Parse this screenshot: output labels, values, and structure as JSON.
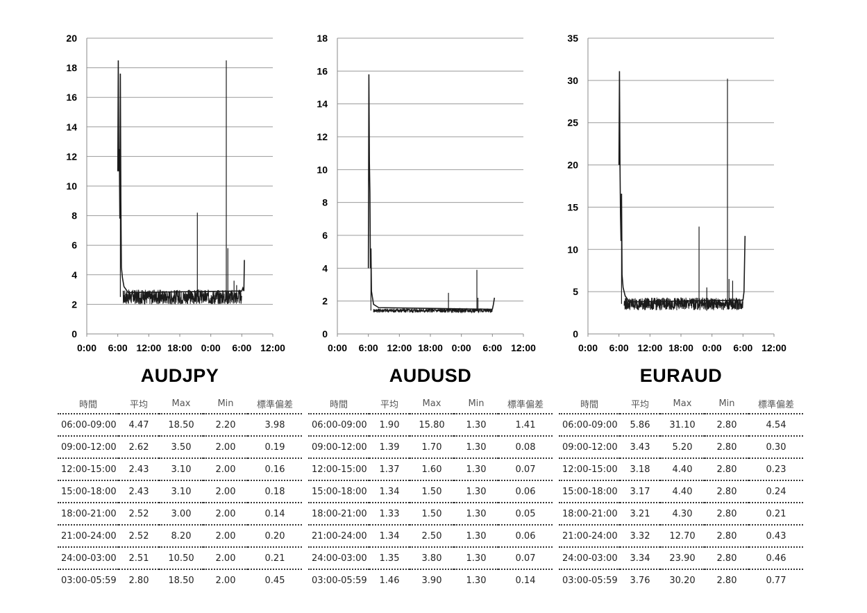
{
  "table_headers": [
    "時間",
    "平均",
    "Max",
    "Min",
    "標準偏差"
  ],
  "chart_data": [
    {
      "type": "line",
      "title": "AUDJPY",
      "ylim": [
        0,
        20
      ],
      "yticks": [
        0,
        2,
        4,
        6,
        8,
        10,
        12,
        14,
        16,
        18,
        20
      ],
      "xticks": [
        "0:00",
        "6:00",
        "12:00",
        "18:00",
        "0:00",
        "6:00",
        "12:00"
      ],
      "xlim_hours": [
        0,
        36
      ],
      "grid": true,
      "line_color": "#1a1a1a",
      "series_points": [
        [
          6.0,
          11.0
        ],
        [
          6.1,
          18.5
        ],
        [
          6.2,
          11.0
        ],
        [
          6.3,
          12.5
        ],
        [
          6.4,
          7.8
        ],
        [
          6.5,
          17.6
        ],
        [
          6.6,
          9.0
        ],
        [
          6.7,
          4.5
        ],
        [
          6.9,
          3.8
        ],
        [
          7.2,
          3.2
        ],
        [
          8,
          2.8
        ],
        [
          30,
          2.9
        ],
        [
          30.2,
          3.1
        ],
        [
          30.4,
          2.9
        ],
        [
          30.5,
          5.0
        ]
      ],
      "spikes": [
        [
          6.5,
          17.6
        ],
        [
          21.4,
          8.2
        ],
        [
          27.0,
          18.5
        ],
        [
          27.3,
          5.8
        ],
        [
          28.5,
          3.6
        ],
        [
          29.0,
          3.3
        ]
      ],
      "band": {
        "start": 7,
        "end": 30,
        "low": 2.0,
        "high": 3.0
      },
      "stats": [
        {
          "time": "06:00-09:00",
          "avg": "4.47",
          "max": "18.50",
          "min": "2.20",
          "sd": "3.98"
        },
        {
          "time": "09:00-12:00",
          "avg": "2.62",
          "max": "3.50",
          "min": "2.00",
          "sd": "0.19"
        },
        {
          "time": "12:00-15:00",
          "avg": "2.43",
          "max": "3.10",
          "min": "2.00",
          "sd": "0.16"
        },
        {
          "time": "15:00-18:00",
          "avg": "2.43",
          "max": "3.10",
          "min": "2.00",
          "sd": "0.18"
        },
        {
          "time": "18:00-21:00",
          "avg": "2.52",
          "max": "3.00",
          "min": "2.00",
          "sd": "0.14"
        },
        {
          "time": "21:00-24:00",
          "avg": "2.52",
          "max": "8.20",
          "min": "2.00",
          "sd": "0.20"
        },
        {
          "time": "24:00-03:00",
          "avg": "2.51",
          "max": "10.50",
          "min": "2.00",
          "sd": "0.21"
        },
        {
          "time": "03:00-05:59",
          "avg": "2.80",
          "max": "18.50",
          "min": "2.00",
          "sd": "0.45"
        }
      ]
    },
    {
      "type": "line",
      "title": "AUDUSD",
      "ylim": [
        0,
        18
      ],
      "yticks": [
        0,
        2,
        4,
        6,
        8,
        10,
        12,
        14,
        16,
        18
      ],
      "xticks": [
        "0:00",
        "6:00",
        "12:00",
        "18:00",
        "0:00",
        "6:00",
        "12:00"
      ],
      "xlim_hours": [
        0,
        36
      ],
      "grid": true,
      "line_color": "#1a1a1a",
      "series_points": [
        [
          6.0,
          4.0
        ],
        [
          6.1,
          15.8
        ],
        [
          6.2,
          10.5
        ],
        [
          6.3,
          8.6
        ],
        [
          6.4,
          4.0
        ],
        [
          6.5,
          5.2
        ],
        [
          6.6,
          2.6
        ],
        [
          6.8,
          2.2
        ],
        [
          7.0,
          1.8
        ],
        [
          8,
          1.6
        ],
        [
          30,
          1.5
        ],
        [
          30.2,
          1.8
        ],
        [
          30.4,
          2.2
        ]
      ],
      "spikes": [
        [
          6.5,
          5.2
        ],
        [
          21.5,
          2.5
        ],
        [
          27.0,
          3.9
        ],
        [
          27.2,
          2.2
        ]
      ],
      "band": {
        "start": 7,
        "end": 30,
        "low": 1.3,
        "high": 1.55
      },
      "stats": [
        {
          "time": "06:00-09:00",
          "avg": "1.90",
          "max": "15.80",
          "min": "1.30",
          "sd": "1.41"
        },
        {
          "time": "09:00-12:00",
          "avg": "1.39",
          "max": "1.70",
          "min": "1.30",
          "sd": "0.08"
        },
        {
          "time": "12:00-15:00",
          "avg": "1.37",
          "max": "1.60",
          "min": "1.30",
          "sd": "0.07"
        },
        {
          "time": "15:00-18:00",
          "avg": "1.34",
          "max": "1.50",
          "min": "1.30",
          "sd": "0.06"
        },
        {
          "time": "18:00-21:00",
          "avg": "1.33",
          "max": "1.50",
          "min": "1.30",
          "sd": "0.05"
        },
        {
          "time": "21:00-24:00",
          "avg": "1.34",
          "max": "2.50",
          "min": "1.30",
          "sd": "0.06"
        },
        {
          "time": "24:00-03:00",
          "avg": "1.35",
          "max": "3.80",
          "min": "1.30",
          "sd": "0.07"
        },
        {
          "time": "03:00-05:59",
          "avg": "1.46",
          "max": "3.90",
          "min": "1.30",
          "sd": "0.14"
        }
      ]
    },
    {
      "type": "line",
      "title": "EURAUD",
      "ylim": [
        0,
        35
      ],
      "yticks": [
        0,
        5,
        10,
        15,
        20,
        25,
        30,
        35
      ],
      "xticks": [
        "0:00",
        "6:00",
        "12:00",
        "18:00",
        "0:00",
        "6:00",
        "12:00"
      ],
      "xlim_hours": [
        0,
        36
      ],
      "grid": true,
      "line_color": "#1a1a1a",
      "series_points": [
        [
          6.0,
          20.0
        ],
        [
          6.1,
          31.1
        ],
        [
          6.2,
          20.0
        ],
        [
          6.3,
          14.0
        ],
        [
          6.4,
          11.0
        ],
        [
          6.5,
          16.6
        ],
        [
          6.6,
          7.0
        ],
        [
          6.8,
          5.5
        ],
        [
          7.2,
          4.5
        ],
        [
          8,
          3.8
        ],
        [
          30,
          4.0
        ],
        [
          30.2,
          5.0
        ],
        [
          30.4,
          11.6
        ]
      ],
      "spikes": [
        [
          6.5,
          16.6
        ],
        [
          21.5,
          12.7
        ],
        [
          23.0,
          5.5
        ],
        [
          27.0,
          30.2
        ],
        [
          27.3,
          6.5
        ],
        [
          28.0,
          6.3
        ]
      ],
      "band": {
        "start": 7,
        "end": 30,
        "low": 2.8,
        "high": 4.3
      },
      "stats": [
        {
          "time": "06:00-09:00",
          "avg": "5.86",
          "max": "31.10",
          "min": "2.80",
          "sd": "4.54"
        },
        {
          "time": "09:00-12:00",
          "avg": "3.43",
          "max": "5.20",
          "min": "2.80",
          "sd": "0.30"
        },
        {
          "time": "12:00-15:00",
          "avg": "3.18",
          "max": "4.40",
          "min": "2.80",
          "sd": "0.23"
        },
        {
          "time": "15:00-18:00",
          "avg": "3.17",
          "max": "4.40",
          "min": "2.80",
          "sd": "0.24"
        },
        {
          "time": "18:00-21:00",
          "avg": "3.21",
          "max": "4.30",
          "min": "2.80",
          "sd": "0.21"
        },
        {
          "time": "21:00-24:00",
          "avg": "3.32",
          "max": "12.70",
          "min": "2.80",
          "sd": "0.43"
        },
        {
          "time": "24:00-03:00",
          "avg": "3.34",
          "max": "23.90",
          "min": "2.80",
          "sd": "0.46"
        },
        {
          "time": "03:00-05:59",
          "avg": "3.76",
          "max": "30.20",
          "min": "2.80",
          "sd": "0.77"
        }
      ]
    }
  ]
}
